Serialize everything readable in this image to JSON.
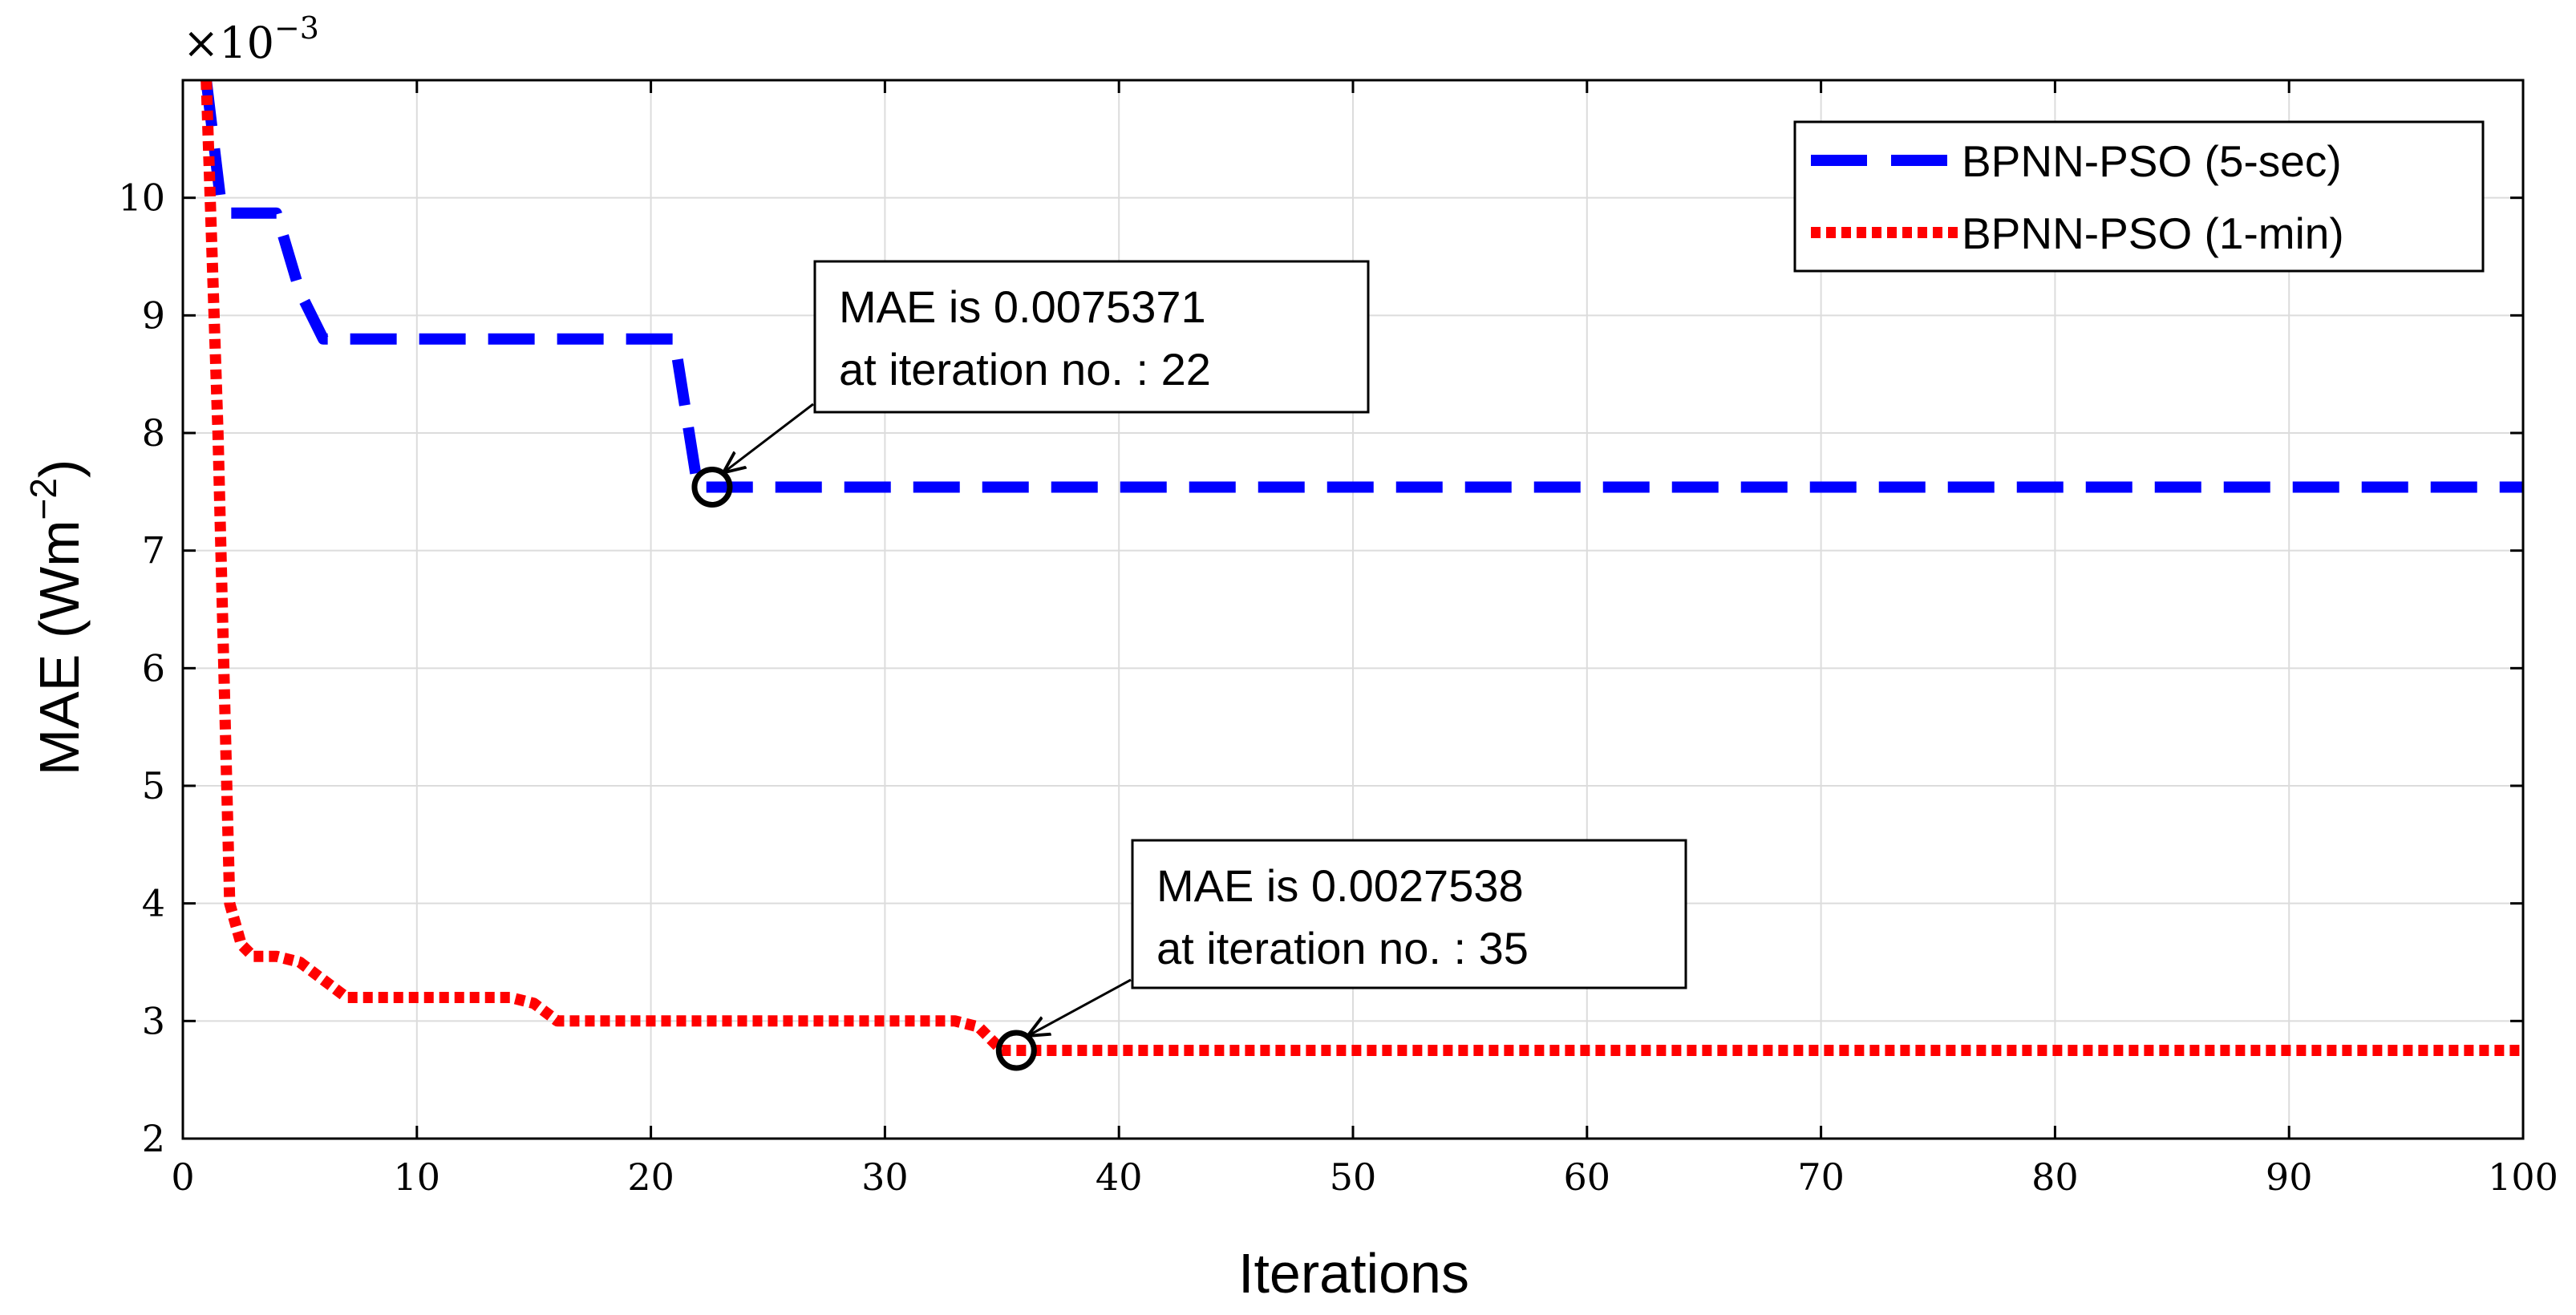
{
  "chart_data": {
    "type": "line",
    "xlabel": "Iterations",
    "ylabel_main": "MAE (Wm",
    "ylabel_sup": "−2",
    "ylabel_close": ")",
    "y_multiplier_base": "×10",
    "y_multiplier_exp": "−3",
    "xlim": [
      0,
      100
    ],
    "ylim": [
      2,
      11
    ],
    "xticks": [
      0,
      10,
      20,
      30,
      40,
      50,
      60,
      70,
      80,
      90,
      100
    ],
    "yticks": [
      2,
      3,
      4,
      5,
      6,
      7,
      8,
      9,
      10
    ],
    "grid": true,
    "legend_position": "top-right",
    "series": [
      {
        "name": "BPNN-PSO (5-sec)",
        "color": "#0000ff",
        "style": "dashed",
        "x": [
          1,
          1.6,
          2,
          3,
          4,
          5,
          6,
          7,
          20,
          21,
          22,
          23,
          100
        ],
        "y": [
          11.0,
          10.0,
          9.87,
          9.87,
          9.87,
          9.2,
          8.8,
          8.8,
          8.8,
          8.8,
          7.54,
          7.54,
          7.54
        ]
      },
      {
        "name": "BPNN-PSO (1-min)",
        "color": "#ff0000",
        "style": "dotted",
        "x": [
          1,
          1.5,
          2,
          2.5,
          3,
          4,
          5,
          6,
          7,
          8,
          14,
          15,
          16,
          33,
          34,
          35,
          36,
          100
        ],
        "y": [
          11.0,
          8.0,
          4.0,
          3.65,
          3.55,
          3.55,
          3.5,
          3.35,
          3.2,
          3.2,
          3.2,
          3.15,
          3.0,
          3.0,
          2.95,
          2.75,
          2.75,
          2.75
        ]
      }
    ],
    "annotations": [
      {
        "line1": "MAE is 0.0075371",
        "line2": "at iteration no. : 22",
        "x": 22,
        "y": 7.54
      },
      {
        "line1": "MAE is 0.0027538",
        "line2": "at iteration no. : 35",
        "x": 35,
        "y": 2.75
      }
    ]
  }
}
